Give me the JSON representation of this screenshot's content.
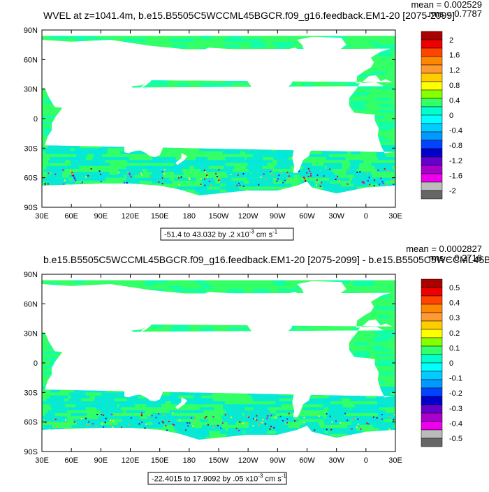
{
  "chart_data": [
    {
      "type": "heatmap",
      "title": "WVEL at z=1041.4m, b.e15.B5505C5WCCML45BGCR.f09_g16.feedback.EM1-20 [2075-2099]",
      "stat_mean": "mean = 0.002529",
      "stat_rms": "rms = 0.7787",
      "x_ticks": [
        "30E",
        "60E",
        "90E",
        "120E",
        "150E",
        "180",
        "150W",
        "120W",
        "90W",
        "60W",
        "30W",
        "0",
        "30E"
      ],
      "y_ticks": [
        "90N",
        "60N",
        "30N",
        "0",
        "30S",
        "60S",
        "90S"
      ],
      "xlim": [
        "30E",
        "30E"
      ],
      "ylim": [
        "90S",
        "90N"
      ],
      "colorbar_labels": [
        "2",
        "1.6",
        "1.2",
        "0.8",
        "0.4",
        "0",
        "-0.4",
        "-0.8",
        "-1.2",
        "-1.6",
        "-2"
      ],
      "colorbar_range": [
        -2,
        2
      ],
      "info_text": "-51.4 to 43.032 by .2 x10",
      "info_exp": "-3",
      "info_unit": " cm s",
      "info_unit_exp": "-1"
    },
    {
      "type": "heatmap",
      "title": "b.e15.B5505C5WCCML45BGCR.f09_g16.feedback.EM1-20 [2075-2099] - b.e15.B5505C5WCCML45BGCR",
      "stat_mean": "mean = 0.0002827",
      "stat_rms": "rms = 0.2716",
      "x_ticks": [
        "30E",
        "60E",
        "90E",
        "120E",
        "150E",
        "180",
        "150W",
        "120W",
        "90W",
        "60W",
        "30W",
        "0",
        "30E"
      ],
      "y_ticks": [
        "90N",
        "60N",
        "30N",
        "0",
        "30S",
        "60S",
        "90S"
      ],
      "xlim": [
        "30E",
        "30E"
      ],
      "ylim": [
        "90S",
        "90N"
      ],
      "colorbar_labels": [
        "0.5",
        "0.4",
        "0.3",
        "0.2",
        "0.1",
        "0",
        "-0.1",
        "-0.2",
        "-0.3",
        "-0.4",
        "-0.5"
      ],
      "colorbar_range": [
        -0.5,
        0.5
      ],
      "info_text": "-22.4015 to 17.9092 by .05 x10",
      "info_exp": "-3",
      "info_unit": " cm s",
      "info_unit_exp": "-1"
    }
  ],
  "colors": {
    "ocean_base": "#33ff66",
    "ocean_alt": "#00ffcc",
    "ocean_deep": "#00e5e5",
    "land": "#ffffff",
    "colorbar": [
      "#aa0000",
      "#ee0000",
      "#ff4400",
      "#ff8800",
      "#ff9933",
      "#ffcc00",
      "#ffff00",
      "#88ff00",
      "#33ff66",
      "#00ffcc",
      "#00ffff",
      "#00ccff",
      "#0099ff",
      "#0044ff",
      "#0000cc",
      "#6600cc",
      "#aa00cc",
      "#ee00ee",
      "#bbbbbb",
      "#666666"
    ]
  }
}
